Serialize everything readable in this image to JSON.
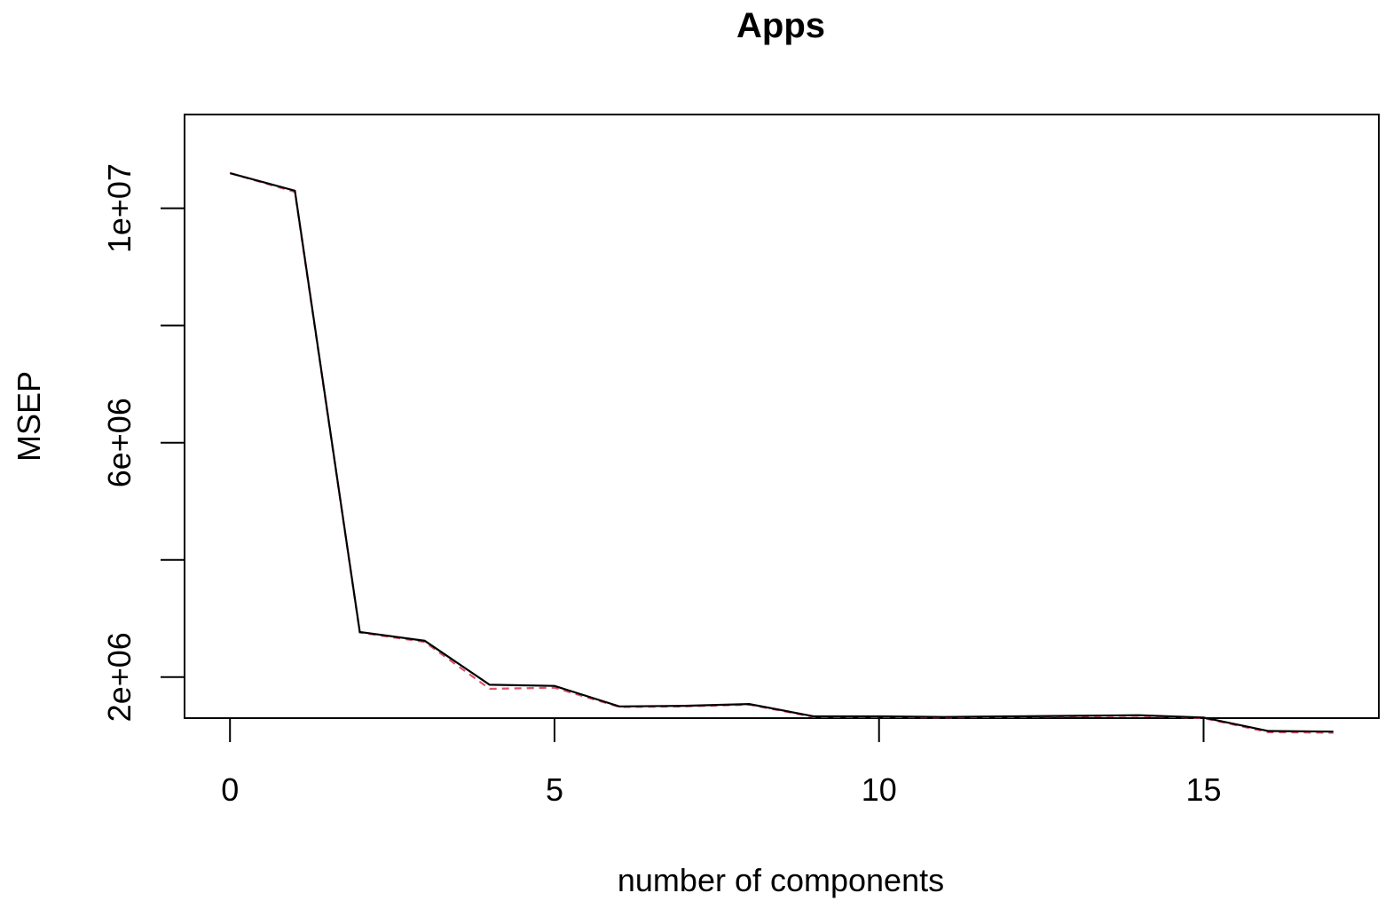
{
  "chart_data": {
    "type": "line",
    "title": "Apps",
    "xlabel": "number of components",
    "ylabel": "MSEP",
    "xlim": [
      -0.7,
      17.7
    ],
    "ylim": [
      1300000,
      11600000
    ],
    "x": [
      0,
      1,
      2,
      3,
      4,
      5,
      6,
      7,
      8,
      9,
      10,
      11,
      12,
      13,
      14,
      15,
      16,
      17
    ],
    "x_ticks": [
      0,
      5,
      10,
      15
    ],
    "x_tick_labels": [
      "0",
      "5",
      "10",
      "15"
    ],
    "y_ticks": [
      2000000,
      4000000,
      6000000,
      8000000,
      10000000
    ],
    "y_tick_labels": [
      "2e+06",
      "",
      "6e+06",
      "",
      "1e+07"
    ],
    "grid": false,
    "series": [
      {
        "key": "cv",
        "color": "#000000",
        "values": [
          10600000,
          10300000,
          2770000,
          2620000,
          1870000,
          1850000,
          1500000,
          1510000,
          1540000,
          1330000,
          1330000,
          1320000,
          1330000,
          1340000,
          1350000,
          1310000,
          1080000,
          1070000
        ]
      },
      {
        "key": "adjCV",
        "color": "#DF536B",
        "dashed": true,
        "values": [
          10600000,
          10280000,
          2760000,
          2600000,
          1800000,
          1820000,
          1490000,
          1500000,
          1530000,
          1320000,
          1320000,
          1310000,
          1320000,
          1330000,
          1340000,
          1300000,
          1060000,
          1050000
        ]
      }
    ]
  }
}
